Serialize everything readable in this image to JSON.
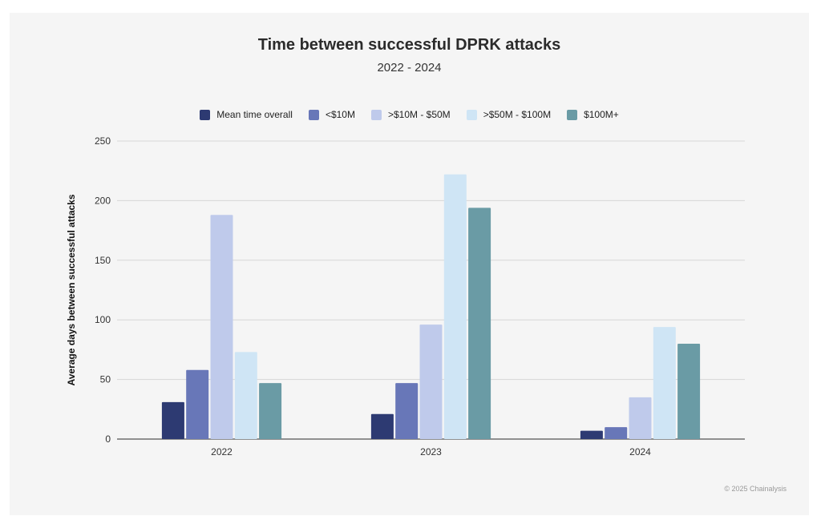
{
  "chart_data": {
    "type": "bar",
    "title": "Time between successful DPRK attacks",
    "subtitle": "2022 - 2024",
    "xlabel": "",
    "ylabel": "Average days between successful attacks",
    "ylim": [
      0,
      250
    ],
    "yticks": [
      0,
      50,
      100,
      150,
      200,
      250
    ],
    "categories": [
      "2022",
      "2023",
      "2024"
    ],
    "series": [
      {
        "name": "Mean time overall",
        "color": "#2d3a72",
        "values": [
          31,
          21,
          7
        ]
      },
      {
        "name": "<$10M",
        "color": "#6877b8",
        "values": [
          58,
          47,
          10
        ]
      },
      {
        "name": ">$10M - $50M",
        "color": "#bfcaeb",
        "values": [
          188,
          96,
          35
        ]
      },
      {
        "name": ">$50M - $100M",
        "color": "#cfe5f5",
        "values": [
          73,
          222,
          94
        ]
      },
      {
        "name": "$100M+",
        "color": "#6a9ba5",
        "values": [
          47,
          194,
          80
        ]
      }
    ],
    "legend_position": "top",
    "grid": true
  },
  "credit": "© 2025 Chainalysis"
}
